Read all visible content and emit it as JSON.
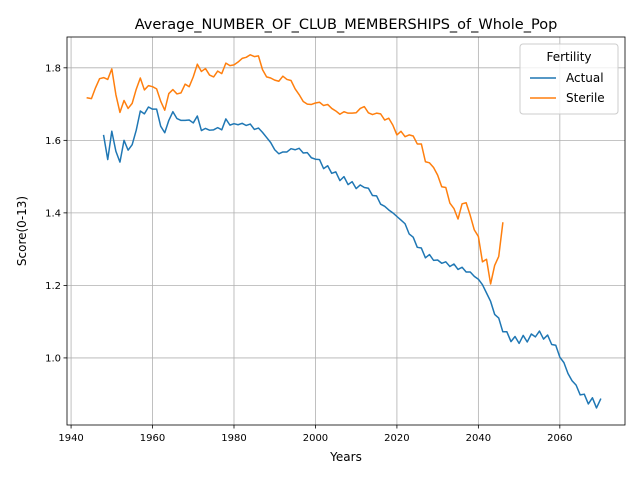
{
  "chart_data": {
    "type": "line",
    "title": "Average_NUMBER_OF_CLUB_MEMBERSHIPS_of_Whole_Pop",
    "xlabel": "Years",
    "ylabel": "Score(0-13)",
    "xlim": [
      1939,
      2076
    ],
    "ylim": [
      0.815,
      1.885
    ],
    "xticks": [
      1940,
      1960,
      1980,
      2000,
      2020,
      2040,
      2060
    ],
    "yticks": [
      1.0,
      1.2,
      1.4,
      1.6,
      1.8
    ],
    "grid": true,
    "legend": {
      "title": "Fertility",
      "placement": "top-right"
    },
    "series": [
      {
        "name": "Actual",
        "color": "#1f77b4",
        "x": [
          1948,
          1949,
          1950,
          1951,
          1952,
          1953,
          1954,
          1955,
          1956,
          1957,
          1958,
          1959,
          1960,
          1961,
          1962,
          1963,
          1964,
          1965,
          1966,
          1967,
          1968,
          1969,
          1970,
          1971,
          1972,
          1973,
          1974,
          1975,
          1976,
          1977,
          1978,
          1979,
          1980,
          1981,
          1982,
          1983,
          1984,
          1985,
          1986,
          1987,
          1988,
          1989,
          1990,
          1991,
          1992,
          1993,
          1994,
          1995,
          1996,
          1997,
          1998,
          1999,
          2000,
          2001,
          2002,
          2003,
          2004,
          2005,
          2006,
          2007,
          2008,
          2009,
          2010,
          2011,
          2012,
          2013,
          2014,
          2015,
          2016,
          2017,
          2018,
          2019,
          2020,
          2021,
          2022,
          2023,
          2024,
          2025,
          2026,
          2027,
          2028,
          2029,
          2030,
          2031,
          2032,
          2033,
          2034,
          2035,
          2036,
          2037,
          2038,
          2039,
          2040,
          2041,
          2042,
          2043,
          2044,
          2045,
          2046,
          2047,
          2048,
          2049,
          2050,
          2051,
          2052,
          2053,
          2054,
          2055,
          2056,
          2057,
          2058,
          2059,
          2060,
          2061,
          2062,
          2063,
          2064,
          2065,
          2066,
          2067,
          2068,
          2069,
          2070
        ],
        "y": [
          1.613,
          1.547,
          1.625,
          1.57,
          1.54,
          1.6,
          1.573,
          1.588,
          1.628,
          1.681,
          1.673,
          1.692,
          1.686,
          1.686,
          1.639,
          1.621,
          1.655,
          1.679,
          1.66,
          1.655,
          1.655,
          1.656,
          1.648,
          1.667,
          1.627,
          1.633,
          1.628,
          1.629,
          1.635,
          1.629,
          1.659,
          1.642,
          1.646,
          1.643,
          1.647,
          1.641,
          1.645,
          1.63,
          1.634,
          1.622,
          1.608,
          1.594,
          1.574,
          1.563,
          1.568,
          1.568,
          1.577,
          1.574,
          1.578,
          1.565,
          1.566,
          1.552,
          1.548,
          1.547,
          1.522,
          1.53,
          1.509,
          1.513,
          1.489,
          1.5,
          1.478,
          1.486,
          1.467,
          1.477,
          1.47,
          1.468,
          1.448,
          1.447,
          1.424,
          1.418,
          1.408,
          1.4,
          1.39,
          1.38,
          1.37,
          1.342,
          1.333,
          1.305,
          1.303,
          1.276,
          1.285,
          1.269,
          1.27,
          1.261,
          1.265,
          1.252,
          1.259,
          1.244,
          1.25,
          1.237,
          1.237,
          1.225,
          1.217,
          1.202,
          1.179,
          1.156,
          1.12,
          1.11,
          1.072,
          1.072,
          1.045,
          1.059,
          1.04,
          1.062,
          1.044,
          1.066,
          1.058,
          1.074,
          1.052,
          1.063,
          1.037,
          1.035,
          1.002,
          0.987,
          0.957,
          0.937,
          0.925,
          0.898,
          0.9,
          0.873,
          0.89,
          0.862,
          0.886
        ]
      },
      {
        "name": "Sterile",
        "color": "#ff7f0e",
        "x": [
          1944,
          1945,
          1946,
          1947,
          1948,
          1949,
          1950,
          1951,
          1952,
          1953,
          1954,
          1955,
          1956,
          1957,
          1958,
          1959,
          1960,
          1961,
          1962,
          1963,
          1964,
          1965,
          1966,
          1967,
          1968,
          1969,
          1970,
          1971,
          1972,
          1973,
          1974,
          1975,
          1976,
          1977,
          1978,
          1979,
          1980,
          1981,
          1982,
          1983,
          1984,
          1985,
          1986,
          1987,
          1988,
          1989,
          1990,
          1991,
          1992,
          1993,
          1994,
          1995,
          1996,
          1997,
          1998,
          1999,
          2000,
          2001,
          2002,
          2003,
          2004,
          2005,
          2006,
          2007,
          2008,
          2009,
          2010,
          2011,
          2012,
          2013,
          2014,
          2015,
          2016,
          2017,
          2018,
          2019,
          2020,
          2021,
          2022,
          2023,
          2024,
          2025,
          2026,
          2027,
          2028,
          2029,
          2030,
          2031,
          2032,
          2033,
          2034,
          2035,
          2036,
          2037,
          2038,
          2039,
          2040,
          2041,
          2042,
          2043,
          2044,
          2045,
          2046
        ],
        "y": [
          1.717,
          1.715,
          1.745,
          1.77,
          1.773,
          1.768,
          1.797,
          1.726,
          1.677,
          1.71,
          1.688,
          1.702,
          1.741,
          1.772,
          1.739,
          1.751,
          1.748,
          1.742,
          1.708,
          1.683,
          1.729,
          1.74,
          1.728,
          1.731,
          1.755,
          1.748,
          1.775,
          1.81,
          1.79,
          1.798,
          1.78,
          1.775,
          1.791,
          1.784,
          1.813,
          1.806,
          1.808,
          1.816,
          1.826,
          1.829,
          1.836,
          1.831,
          1.833,
          1.795,
          1.775,
          1.772,
          1.766,
          1.763,
          1.777,
          1.768,
          1.765,
          1.742,
          1.726,
          1.707,
          1.7,
          1.699,
          1.703,
          1.705,
          1.696,
          1.699,
          1.688,
          1.681,
          1.672,
          1.679,
          1.675,
          1.675,
          1.676,
          1.688,
          1.693,
          1.676,
          1.671,
          1.675,
          1.673,
          1.656,
          1.661,
          1.642,
          1.615,
          1.625,
          1.61,
          1.615,
          1.612,
          1.59,
          1.59,
          1.541,
          1.538,
          1.525,
          1.504,
          1.472,
          1.47,
          1.427,
          1.412,
          1.383,
          1.425,
          1.428,
          1.393,
          1.353,
          1.335,
          1.265,
          1.272,
          1.204,
          1.255,
          1.28,
          1.372
        ]
      }
    ]
  }
}
